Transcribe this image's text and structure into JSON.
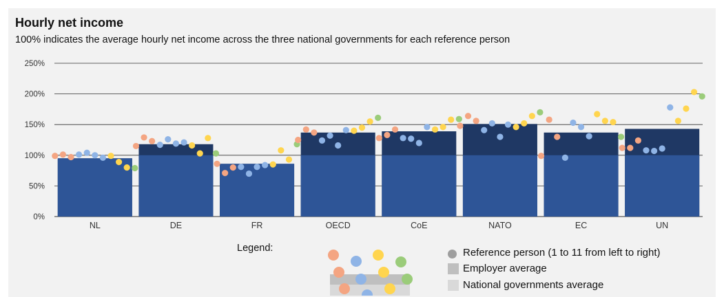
{
  "colors": {
    "national_avg_bar": "#2e5597",
    "employer_bar": "#1f3864",
    "gridline": "#333333",
    "person_colors": [
      "#f4a582",
      "#f4a582",
      "#f4a582",
      "#8fb4e6",
      "#8fb4e6",
      "#8fb4e6",
      "#8fb4e6",
      "#ffd54f",
      "#ffd54f",
      "#ffd54f",
      "#9bcc7a"
    ],
    "legend_gray_marker": "#9e9e9e",
    "legend_employer_gray": "#bfbfbf",
    "legend_national_gray": "#d9d9d9"
  },
  "chart_data": {
    "type": "bar",
    "title": "Hourly net income",
    "subtitle": "100% indicates the average hourly net income across the three national governments for each reference person",
    "xlabel": "",
    "ylabel": "",
    "ylim": [
      0,
      250
    ],
    "yticks": [
      0,
      50,
      100,
      150,
      200,
      250
    ],
    "ytick_labels": [
      "0%",
      "50%",
      "100%",
      "150%",
      "200%",
      "250%"
    ],
    "grid": true,
    "categories": [
      "NL",
      "DE",
      "FR",
      "OECD",
      "CoE",
      "NATO",
      "EC",
      "UN"
    ],
    "series": [
      {
        "name": "Employer average",
        "values": [
          95,
          118,
          86,
          137,
          139,
          151,
          137,
          143
        ]
      },
      {
        "name": "National governments average",
        "values": [
          100,
          100,
          100,
          100,
          100,
          100,
          100,
          100
        ]
      }
    ],
    "reference_points": [
      {
        "category": "NL",
        "values": [
          99,
          101,
          97,
          101,
          104,
          100,
          96,
          99,
          89,
          80,
          79
        ]
      },
      {
        "category": "DE",
        "values": [
          115,
          129,
          123,
          117,
          126,
          119,
          121,
          116,
          103,
          128,
          103
        ]
      },
      {
        "category": "FR",
        "values": [
          86,
          71,
          80,
          81,
          70,
          81,
          84,
          85,
          108,
          93,
          118
        ]
      },
      {
        "category": "OECD",
        "values": [
          125,
          142,
          137,
          124,
          132,
          116,
          141,
          140,
          145,
          155,
          161
        ]
      },
      {
        "category": "CoE",
        "values": [
          128,
          133,
          142,
          128,
          127,
          120,
          146,
          142,
          146,
          158,
          159
        ]
      },
      {
        "category": "NATO",
        "values": [
          148,
          164,
          156,
          141,
          152,
          130,
          150,
          146,
          152,
          164,
          170
        ]
      },
      {
        "category": "EC",
        "values": [
          99,
          158,
          130,
          96,
          153,
          146,
          131,
          167,
          156,
          154,
          130
        ]
      },
      {
        "category": "UN",
        "values": [
          112,
          112,
          124,
          108,
          107,
          111,
          178,
          156,
          176,
          203,
          196
        ]
      }
    ]
  },
  "legend": {
    "title": "Legend:",
    "items": [
      {
        "label": "Reference person (1 to 11 from left to right)"
      },
      {
        "label": "Employer average"
      },
      {
        "label": "National governments average"
      }
    ]
  }
}
